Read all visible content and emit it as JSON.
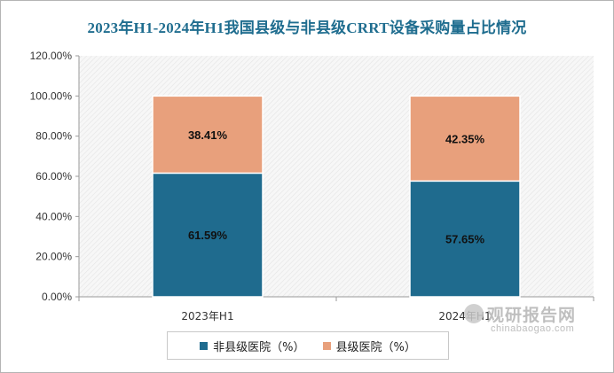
{
  "chart_data": {
    "type": "bar",
    "stacked": true,
    "title": "2023年H1-2024年H1我国县级与非县级CRRT设备采购量占比情况",
    "categories": [
      "2023年H1",
      "2024年H1"
    ],
    "series": [
      {
        "name": "非县级医院（%）",
        "values": [
          61.59,
          57.65
        ],
        "labels": [
          "61.59%",
          "57.65%"
        ],
        "color": "#1f6b8e"
      },
      {
        "name": "县级医院（%）",
        "values": [
          38.41,
          42.35
        ],
        "labels": [
          "38.41%",
          "42.35%"
        ],
        "color": "#e8a07c"
      }
    ],
    "ylim": [
      0,
      120
    ],
    "yticks": [
      0,
      20,
      40,
      60,
      80,
      100,
      120
    ],
    "ytick_labels": [
      "0.00%",
      "20.00%",
      "40.00%",
      "60.00%",
      "80.00%",
      "100.00%",
      "120.00%"
    ],
    "grid": false,
    "legend_position": "bottom",
    "background": "hatched-light-gray"
  },
  "legend": {
    "non_county": "非县级医院（%）",
    "county": "县级医院（%）"
  },
  "watermark": {
    "main": "观研报告网",
    "sub": "chinabaogao.com"
  }
}
